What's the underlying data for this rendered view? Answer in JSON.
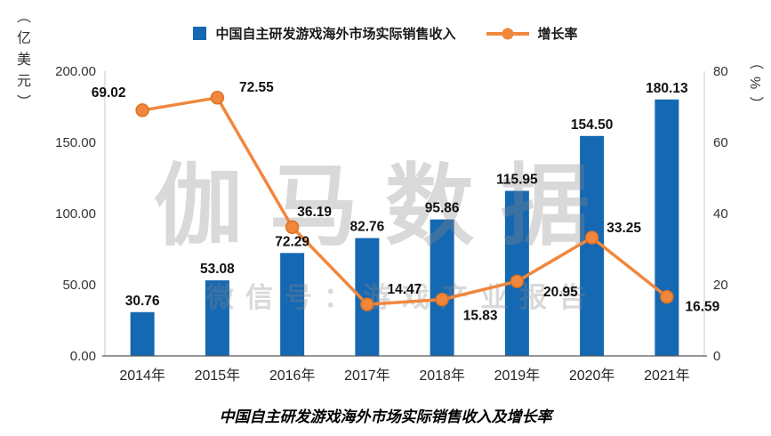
{
  "chart_data": {
    "type": "bar",
    "subtype": "combo-bar-line",
    "categories": [
      "2014年",
      "2015年",
      "2016年",
      "2017年",
      "2018年",
      "2019年",
      "2020年",
      "2021年"
    ],
    "series": [
      {
        "name": "中国自主研发游戏海外市场实际销售收入",
        "type": "bar",
        "axis": "left",
        "color": "#1568b2",
        "values": [
          30.76,
          53.08,
          72.29,
          82.76,
          95.86,
          115.95,
          154.5,
          180.13
        ]
      },
      {
        "name": "增长率",
        "type": "line",
        "axis": "right",
        "color": "#f0873c",
        "marker_stroke": "#db7223",
        "values": [
          69.02,
          72.55,
          36.19,
          14.47,
          15.83,
          20.95,
          33.25,
          16.59
        ]
      }
    ],
    "left_axis": {
      "label": "（亿美元）",
      "min": 0,
      "max": 200,
      "ticks": [
        "0.00",
        "50.00",
        "100.00",
        "150.00",
        "200.00"
      ]
    },
    "right_axis": {
      "label": "（%）",
      "min": 0,
      "max": 80,
      "ticks": [
        "0",
        "20",
        "40",
        "60",
        "80"
      ]
    },
    "grid": false,
    "legend_position": "top",
    "value_labels": true,
    "title": "中国自主研发游戏海外市场实际销售收入及增长率"
  },
  "watermark": {
    "line1": "伽马数据",
    "line2": "微信号：游戏产业报告"
  }
}
